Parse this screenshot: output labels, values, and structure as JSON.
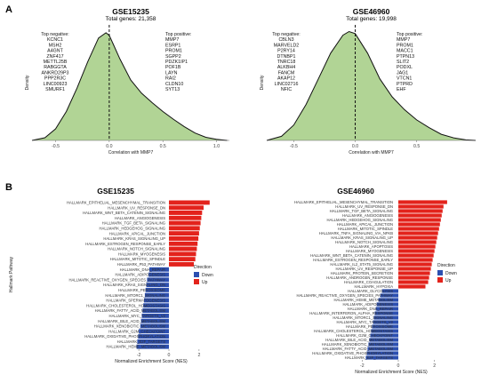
{
  "panels": {
    "a": "A",
    "b": "B"
  },
  "chart_data": [
    {
      "type": "area",
      "title": "GSE15235",
      "subtitle": "Total genes: 21,358",
      "xlabel": "Correlation with MMP7",
      "ylabel": "Density",
      "xticks": [
        "-0.5",
        "0.0",
        "0.5",
        "1.0"
      ],
      "xlim": [
        -0.72,
        1.12
      ],
      "x": [
        -0.72,
        -0.6,
        -0.5,
        -0.4,
        -0.3,
        -0.2,
        -0.1,
        -0.03,
        0.0,
        0.1,
        0.2,
        0.3,
        0.4,
        0.5,
        0.6,
        0.7,
        0.8,
        0.9,
        1.0,
        1.1
      ],
      "y": [
        0.0,
        0.05,
        0.22,
        0.55,
        1.0,
        1.5,
        1.95,
        2.05,
        2.0,
        1.55,
        1.15,
        0.9,
        0.72,
        0.55,
        0.4,
        0.26,
        0.14,
        0.06,
        0.02,
        0.0
      ],
      "ymax": 2.2,
      "vline": 0.0,
      "top_negative_label": "Top negative:",
      "top_negative": [
        "KCNC1",
        "MSH2",
        "A4GNT",
        "ZNF417",
        "METTL25B",
        "RABGGTA",
        "ANKRD29P3",
        "PPP2R3C",
        "LINC00923",
        "SMURF1"
      ],
      "top_positive_label": "Top positive:",
      "top_positive": [
        "MMP7",
        "ESRP1",
        "PROM1",
        "SGPP2",
        "PDZK1IP1",
        "POF1B",
        "LAYN",
        "RAI2",
        "CLDN10",
        "SYT13"
      ]
    },
    {
      "type": "area",
      "title": "GSE46960",
      "subtitle": "Total genes: 19,998",
      "xlabel": "Correlation with MMP7",
      "ylabel": "Density",
      "xticks": [
        "-0.5",
        "0.0",
        "0.5"
      ],
      "xlim": [
        -0.72,
        0.98
      ],
      "x": [
        -0.72,
        -0.6,
        -0.5,
        -0.4,
        -0.3,
        -0.2,
        -0.1,
        -0.05,
        0.0,
        0.1,
        0.2,
        0.3,
        0.4,
        0.5,
        0.6,
        0.7,
        0.8,
        0.9,
        0.98
      ],
      "y": [
        0.0,
        0.08,
        0.3,
        0.7,
        1.2,
        1.7,
        2.05,
        2.12,
        2.08,
        1.7,
        1.2,
        0.85,
        0.6,
        0.4,
        0.25,
        0.12,
        0.05,
        0.01,
        0.0
      ],
      "ymax": 2.25,
      "vline": 0.0,
      "top_negative_label": "Top negative:",
      "top_negative": [
        "CBLN3",
        "MARVELD2",
        "P2RY14",
        "DTNBP1",
        "TNRC18",
        "ALKBH4",
        "FANCM",
        "AKAP12",
        "LINC02716",
        "NFIC"
      ],
      "top_positive_label": "Top positive:",
      "top_positive": [
        "MMP7",
        "PROM1",
        "MACC1",
        "PTPN13",
        "SLIT2",
        "PODXL",
        "JAG1",
        "VTCN1",
        "PTPRD",
        "EHF"
      ]
    },
    {
      "type": "bar",
      "title": "GSE15235",
      "xlabel": "Normalized Enrichment Score (NES)",
      "ylabel": "Hallmark Pathway",
      "xticks": [
        "-2",
        "0",
        "2"
      ],
      "xlim": [
        -2.9,
        3.0
      ],
      "legend_title": "Direction",
      "legend": [
        "Down",
        "Up"
      ],
      "colors": {
        "Down": "#2c4fb0",
        "Up": "#e3231c"
      },
      "categories": [
        "HALLMARK_EPITHELIAL_MESENCHYMAL_TRANSITION",
        "HALLMARK_UV_RESPONSE_DN",
        "HALLMARK_WNT_BETA_CATENIN_SIGNALING",
        "HALLMARK_ANGIOGENESIS",
        "HALLMARK_TGF_BETA_SIGNALING",
        "HALLMARK_HEDGEHOG_SIGNALING",
        "HALLMARK_APICAL_JUNCTION",
        "HALLMARK_KRAS_SIGNALING_UP",
        "HALLMARK_ESTROGEN_RESPONSE_EARLY",
        "HALLMARK_NOTCH_SIGNALING",
        "HALLMARK_MYOGENESIS",
        "HALLMARK_MITOTIC_SPINDLE",
        "HALLMARK_P53_PATHWAY",
        "HALLMARK_DNA_REPAIR",
        "HALLMARK_ADIPOGENESIS",
        "HALLMARK_REACTIVE_OXYGEN_SPECIES_PATHWAY",
        "HALLMARK_KRAS_SIGNALING_DN",
        "HALLMARK_PEROXISOME",
        "HALLMARK_MTORC1_SIGNALING",
        "HALLMARK_SPERMATOGENESIS",
        "HALLMARK_CHOLESTEROL_HOMEOSTASIS",
        "HALLMARK_FATTY_ACID_METABOLISM",
        "HALLMARK_MYC_TARGETS_V2",
        "HALLMARK_BILE_ACID_METABOLISM",
        "HALLMARK_XENOBIOTIC_METABOLISM",
        "HALLMARK_G2M_CHECKPOINT",
        "HALLMARK_OXIDATIVE_PHOSPHORYLATION",
        "HALLMARK_E2F_TARGETS",
        "HALLMARK_HEME_METABOLISM"
      ],
      "values": [
        2.7,
        2.3,
        2.2,
        2.15,
        2.1,
        2.05,
        2.0,
        1.95,
        1.9,
        1.85,
        1.8,
        1.75,
        1.65,
        -1.3,
        -1.35,
        -1.45,
        -1.5,
        -1.55,
        -1.6,
        -1.65,
        -1.7,
        -1.75,
        -1.8,
        -1.85,
        -1.9,
        -2.0,
        -2.05,
        -2.1,
        -2.15
      ]
    },
    {
      "type": "bar",
      "title": "GSE46960",
      "xlabel": "Normalized Enrichment Score (NES)",
      "ylabel": "Hallmark Pathway",
      "xticks": [
        "-2",
        "0",
        "2"
      ],
      "xlim": [
        -2.9,
        3.0
      ],
      "legend_title": "Direction",
      "legend": [
        "Down",
        "Up"
      ],
      "colors": {
        "Down": "#2c4fb0",
        "Up": "#e3231c"
      },
      "categories": [
        "HALLMARK_EPITHELIAL_MESENCHYMAL_TRANSITION",
        "HALLMARK_UV_RESPONSE_DN",
        "HALLMARK_TGF_BETA_SIGNALING",
        "HALLMARK_ANGIOGENESIS",
        "HALLMARK_HEDGEHOG_SIGNALING",
        "HALLMARK_APICAL_JUNCTION",
        "HALLMARK_MITOTIC_SPINDLE",
        "HALLMARK_TNFA_SIGNALING_VIA_NFKB",
        "HALLMARK_KRAS_SIGNALING_UP",
        "HALLMARK_NOTCH_SIGNALING",
        "HALLMARK_APOPTOSIS",
        "HALLMARK_MYOGENESIS",
        "HALLMARK_WNT_BETA_CATENIN_SIGNALING",
        "HALLMARK_ESTROGEN_RESPONSE_EARLY",
        "HALLMARK_IL2_STAT5_SIGNALING",
        "HALLMARK_UV_RESPONSE_UP",
        "HALLMARK_PROTEIN_SECRETION",
        "HALLMARK_ANDROGEN_RESPONSE",
        "HALLMARK_COAGULATION",
        "HALLMARK_HYPOXIA",
        "HALLMARK_GLYCOLYSIS",
        "HALLMARK_REACTIVE_OXYGEN_SPECIES_PATHWAY",
        "HALLMARK_HEME_METABOLISM",
        "HALLMARK_ADIPOGENESIS",
        "HALLMARK_DNA_REPAIR",
        "HALLMARK_INTERFERON_ALPHA_RESPONSE",
        "HALLMARK_MTORC1_SIGNALING",
        "HALLMARK_MYC_TARGETS_V2",
        "HALLMARK_PEROXISOME",
        "HALLMARK_CHOLESTEROL_HOMEOSTASIS",
        "HALLMARK_G2M_CHECKPOINT",
        "HALLMARK_BILE_ACID_METABOLISM",
        "HALLMARK_XENOBIOTIC_METABOLISM",
        "HALLMARK_FATTY_ACID_METABOLISM",
        "HALLMARK_OXIDATIVE_PHOSPHORYLATION",
        "HALLMARK_E2F_TARGETS"
      ],
      "values": [
        2.7,
        2.5,
        2.45,
        2.4,
        2.35,
        2.3,
        2.25,
        2.2,
        2.15,
        2.1,
        2.05,
        2.0,
        1.95,
        1.9,
        1.85,
        1.8,
        1.75,
        1.7,
        1.65,
        1.5,
        -0.9,
        -1.0,
        -1.1,
        -1.2,
        -1.25,
        -1.3,
        -1.35,
        -1.4,
        -1.45,
        -1.5,
        -1.55,
        -1.6,
        -1.65,
        -1.7,
        -1.75,
        -1.8
      ]
    }
  ]
}
